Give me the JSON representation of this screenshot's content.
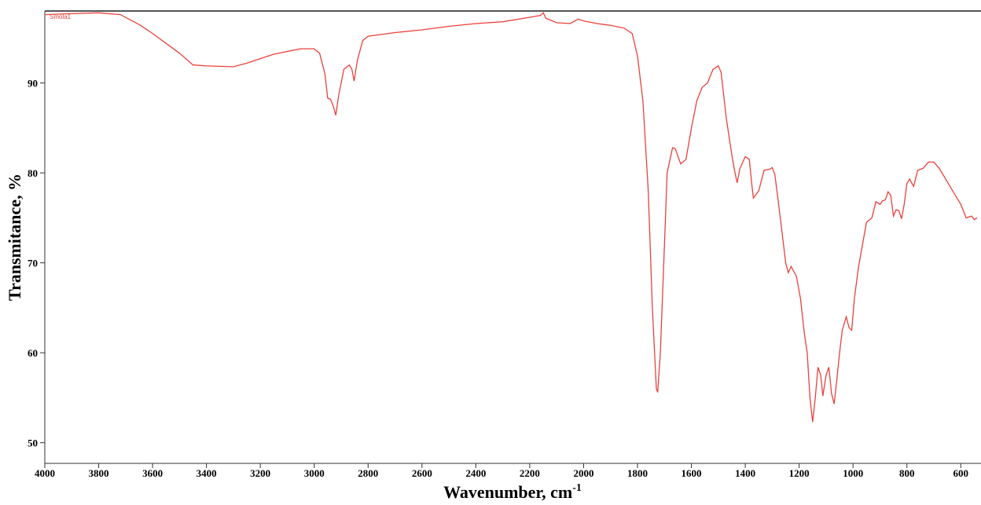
{
  "chart_data": {
    "type": "line",
    "x_label": {
      "text": "Wavenumber, cm",
      "superscript": "-1"
    },
    "y_label": "Transmitance, %",
    "annotation": "Smola1",
    "xlim": [
      4000,
      525
    ],
    "ylim": [
      47.7,
      98
    ],
    "xticks": [
      4000,
      3800,
      3600,
      3400,
      3200,
      3000,
      2800,
      2600,
      2400,
      2200,
      2000,
      1800,
      1600,
      1400,
      1200,
      1000,
      800,
      600
    ],
    "yticks": [
      50,
      60,
      70,
      80,
      90
    ],
    "x": [
      4000,
      3900,
      3800,
      3720,
      3650,
      3600,
      3500,
      3450,
      3400,
      3300,
      3250,
      3150,
      3050,
      3000,
      2980,
      2960,
      2950,
      2940,
      2930,
      2920,
      2910,
      2890,
      2870,
      2860,
      2852,
      2840,
      2820,
      2800,
      2700,
      2600,
      2500,
      2400,
      2300,
      2200,
      2160,
      2150,
      2140,
      2100,
      2050,
      2020,
      2000,
      1950,
      1900,
      1850,
      1820,
      1800,
      1780,
      1760,
      1745,
      1730,
      1725,
      1715,
      1700,
      1690,
      1670,
      1660,
      1640,
      1620,
      1600,
      1580,
      1560,
      1540,
      1520,
      1500,
      1490,
      1470,
      1450,
      1440,
      1430,
      1420,
      1400,
      1385,
      1375,
      1370,
      1350,
      1330,
      1310,
      1300,
      1290,
      1270,
      1250,
      1240,
      1230,
      1210,
      1195,
      1180,
      1170,
      1160,
      1150,
      1140,
      1130,
      1120,
      1112,
      1100,
      1090,
      1080,
      1070,
      1060,
      1050,
      1040,
      1030,
      1025,
      1015,
      1005,
      995,
      980,
      965,
      950,
      930,
      915,
      900,
      890,
      880,
      870,
      860,
      850,
      840,
      830,
      820,
      810,
      800,
      790,
      775,
      760,
      740,
      720,
      700,
      680,
      650,
      620,
      600,
      580,
      560,
      550,
      540
    ],
    "series": [
      {
        "name": "Smola1",
        "color": "#e8413c",
        "values": [
          97.6,
          97.7,
          97.8,
          97.6,
          96.5,
          95.5,
          93.3,
          92.0,
          91.9,
          91.8,
          92.2,
          93.2,
          93.8,
          93.8,
          93.3,
          91.0,
          88.3,
          88.2,
          87.5,
          86.4,
          88.5,
          91.5,
          92.0,
          91.5,
          90.2,
          92.5,
          94.7,
          95.2,
          95.6,
          95.9,
          96.3,
          96.6,
          96.8,
          97.3,
          97.5,
          97.8,
          97.2,
          96.7,
          96.6,
          97.1,
          96.9,
          96.6,
          96.4,
          96.1,
          95.5,
          93,
          88,
          78,
          65,
          56,
          55.6,
          60,
          72,
          80,
          82.8,
          82.7,
          81,
          81.5,
          85,
          88,
          89.5,
          90,
          91.5,
          91.9,
          91.2,
          86,
          82,
          80.3,
          78.9,
          80.5,
          81.8,
          81.5,
          78.5,
          77.2,
          78,
          80.3,
          80.4,
          80.6,
          79.8,
          75,
          70,
          68.9,
          69.6,
          68.5,
          66,
          62,
          60,
          55,
          52.3,
          55,
          58.4,
          57.5,
          55.2,
          57.5,
          58.4,
          55.5,
          54.3,
          57,
          60,
          62.5,
          63.5,
          64,
          62.8,
          62.5,
          66,
          69.5,
          72,
          74.5,
          75,
          76.8,
          76.5,
          76.9,
          77,
          77.9,
          77.5,
          75.2,
          75.9,
          75.8,
          74.9,
          76.5,
          78.8,
          79.3,
          78.5,
          80.3,
          80.5,
          81.2,
          81.2,
          80.5,
          79,
          77.5,
          76.5,
          75,
          75.2,
          74.8,
          75.0
        ]
      }
    ]
  }
}
